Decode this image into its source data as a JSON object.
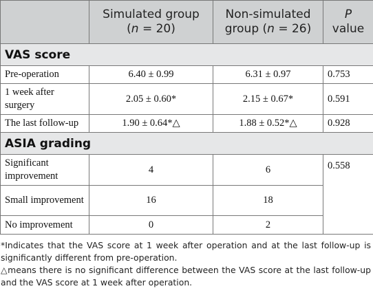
{
  "header": {
    "col1": "",
    "col2_line1": "Simulated group",
    "col2_line2_pre": "(",
    "col2_n": "n",
    "col2_line2_post": " = 20)",
    "col3_line1": "Non-simulated",
    "col3_line2_pre": "group (",
    "col3_n": "n",
    "col3_line2_post": " = 26)",
    "col4_line1": "P",
    "col4_line2": "value"
  },
  "sections": [
    {
      "title": "VAS score",
      "rows": [
        {
          "label": "Pre-operation",
          "sim": "6.40 ± 0.99",
          "nonsim": "6.31 ± 0.97",
          "p": "0.753"
        },
        {
          "label": "1 week after surgery",
          "sim": "2.05 ± 0.60*",
          "nonsim": "2.15 ± 0.67*",
          "p": "0.591"
        },
        {
          "label": "The last follow-up",
          "sim": "1.90 ± 0.64*△",
          "nonsim": "1.88 ± 0.52*△",
          "p": "0.928"
        }
      ]
    },
    {
      "title": "ASIA grading",
      "p": "0.558",
      "rows": [
        {
          "label": "Significant improvement",
          "sim": "4",
          "nonsim": "6"
        },
        {
          "label": "Small improvement",
          "sim": "16",
          "nonsim": "18"
        },
        {
          "label": "No improvement",
          "sim": "0",
          "nonsim": "2"
        }
      ]
    }
  ],
  "footnotes": [
    "*Indicates that the VAS score at 1 week after operation and at the last follow-up is significantly different from pre-operation.",
    "△means there is no significant difference between the VAS score at the last follow-up and the VAS score at 1 week after operation."
  ]
}
